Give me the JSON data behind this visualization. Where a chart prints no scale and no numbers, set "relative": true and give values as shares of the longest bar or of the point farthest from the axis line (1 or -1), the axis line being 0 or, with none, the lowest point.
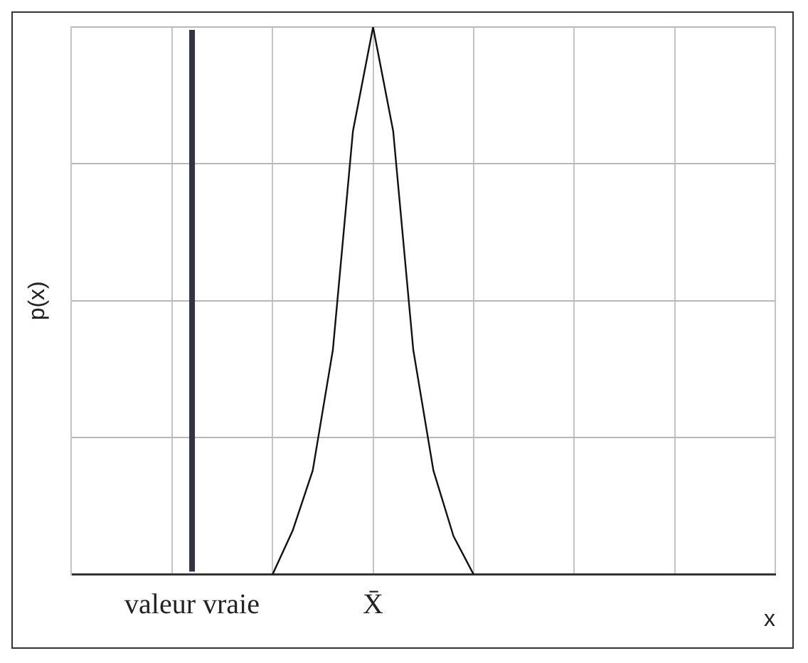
{
  "chart_data": {
    "type": "line",
    "relative": true,
    "xlabel": "x",
    "ylabel": "p(x)",
    "categories": [
      null,
      null,
      null,
      null,
      null,
      null,
      "valeur vraie",
      null,
      null,
      null,
      null,
      null,
      null,
      null,
      null,
      "X̄",
      null,
      null,
      null,
      null,
      null,
      null,
      null,
      null,
      null,
      null,
      null,
      null,
      null,
      null,
      null,
      null,
      null,
      null,
      null,
      null
    ],
    "series": [
      {
        "color": "#111111",
        "values": [
          null,
          null,
          null,
          null,
          null,
          null,
          null,
          null,
          null,
          null,
          0,
          0.08,
          0.19,
          0.41,
          0.81,
          1,
          0.81,
          0.41,
          0.19,
          0.07,
          0,
          null,
          null,
          null,
          null,
          null,
          null,
          null,
          null,
          null,
          null,
          null,
          null,
          null,
          null,
          null
        ]
      }
    ],
    "ref_lines": [
      {
        "axis": "x",
        "value": "valeur vraie",
        "color": "#333344"
      }
    ],
    "grid": true,
    "legend": false,
    "marker": "none",
    "line_style": "solid"
  }
}
